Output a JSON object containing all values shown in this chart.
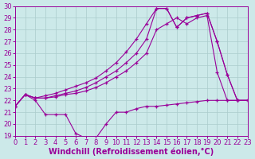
{
  "xlabel": "Windchill (Refroidissement éolien,°C)",
  "xlim": [
    0,
    23
  ],
  "ylim": [
    19,
    30
  ],
  "yticks": [
    19,
    20,
    21,
    22,
    23,
    24,
    25,
    26,
    27,
    28,
    29,
    30
  ],
  "xticks": [
    0,
    1,
    2,
    3,
    4,
    5,
    6,
    7,
    8,
    9,
    10,
    11,
    12,
    13,
    14,
    15,
    16,
    17,
    18,
    19,
    20,
    21,
    22,
    23
  ],
  "bg_color": "#cce9e9",
  "line_color": "#990099",
  "line1_x": [
    0,
    1,
    2,
    3,
    4,
    5,
    6,
    7,
    8,
    9,
    10,
    11,
    12,
    13,
    14,
    15,
    16,
    17,
    18,
    19,
    20,
    21,
    22,
    23
  ],
  "line1_y": [
    21.5,
    22.5,
    22.0,
    20.8,
    20.8,
    20.8,
    19.2,
    18.8,
    18.8,
    20.0,
    21.0,
    21.0,
    21.3,
    21.5,
    21.5,
    21.6,
    21.7,
    21.8,
    21.9,
    22.0,
    22.0,
    22.0,
    22.0,
    22.0
  ],
  "line2_x": [
    0,
    1,
    2,
    3,
    4,
    5,
    6,
    7,
    8,
    9,
    10,
    11,
    12,
    13,
    14,
    15,
    16,
    17,
    18,
    19,
    20,
    21,
    22,
    23
  ],
  "line2_y": [
    21.5,
    22.5,
    22.2,
    22.2,
    22.3,
    22.5,
    22.6,
    22.8,
    23.1,
    23.5,
    24.0,
    24.5,
    25.2,
    26.0,
    28.0,
    28.5,
    29.0,
    28.5,
    29.0,
    29.2,
    24.4,
    22.0,
    22.0,
    22.0
  ],
  "line3_x": [
    0,
    1,
    2,
    3,
    4,
    5,
    6,
    7,
    8,
    9,
    10,
    11,
    12,
    13,
    14,
    15,
    16,
    17,
    18,
    19,
    20,
    21,
    22,
    23
  ],
  "line3_y": [
    21.5,
    22.5,
    22.2,
    22.2,
    22.4,
    22.6,
    22.8,
    23.1,
    23.5,
    24.0,
    24.5,
    25.2,
    26.0,
    27.2,
    29.8,
    29.8,
    28.2,
    29.0,
    29.2,
    29.4,
    27.0,
    24.2,
    22.0,
    22.0
  ],
  "line4_x": [
    0,
    1,
    2,
    3,
    4,
    5,
    6,
    7,
    8,
    9,
    10,
    11,
    12,
    13,
    14,
    15,
    16,
    17,
    18,
    19,
    20,
    21,
    22,
    23
  ],
  "line4_y": [
    21.5,
    22.5,
    22.2,
    22.4,
    22.6,
    22.9,
    23.2,
    23.5,
    23.9,
    24.5,
    25.2,
    26.1,
    27.2,
    28.5,
    29.8,
    29.8,
    28.2,
    29.0,
    29.2,
    29.4,
    27.0,
    24.2,
    22.0,
    22.0
  ],
  "grid_color": "#aacccc",
  "font_size_tick": 6,
  "font_size_label": 7
}
